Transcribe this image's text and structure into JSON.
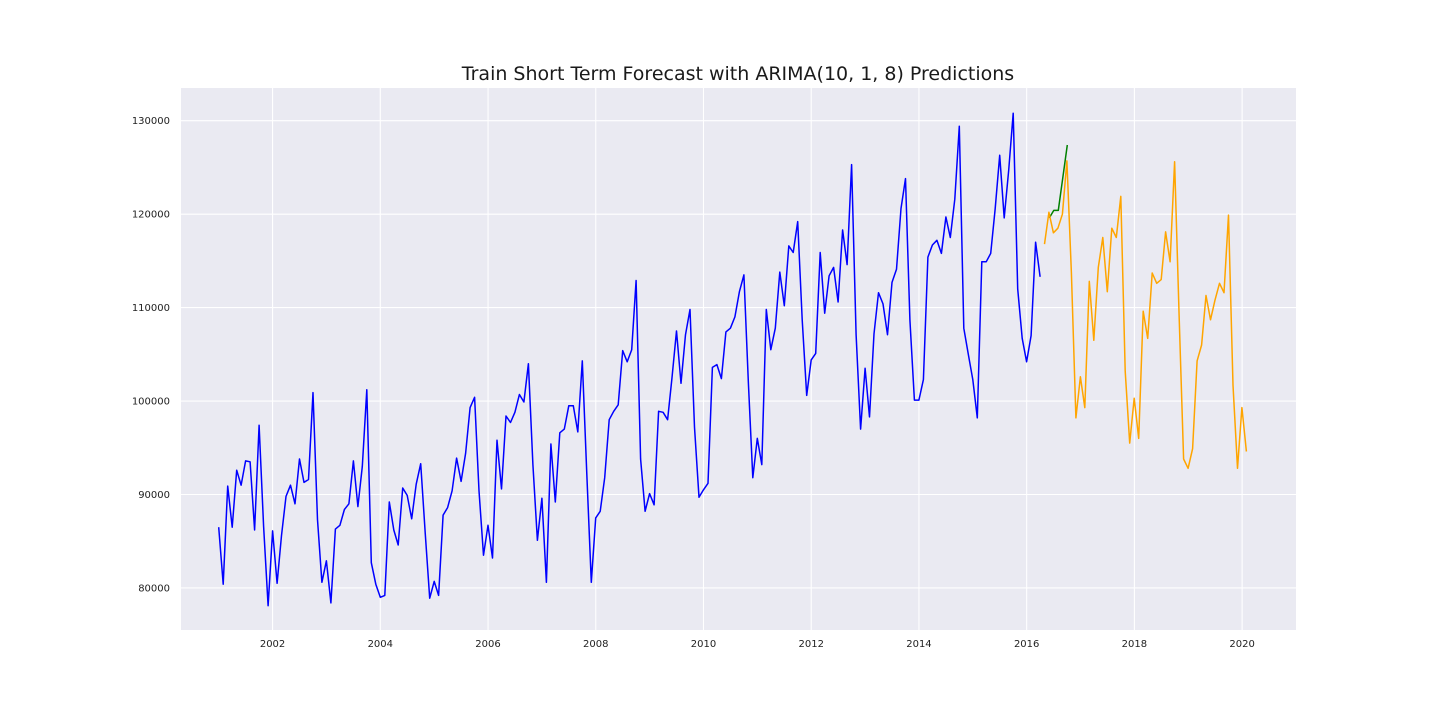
{
  "chart_data": {
    "type": "line",
    "title": "Train Short Term Forecast with ARIMA(10, 1, 8) Predictions",
    "xlabel": "",
    "ylabel": "",
    "xlim": [
      2000.3,
      2021.0
    ],
    "ylim": [
      75500,
      133500
    ],
    "grid": true,
    "x_ticks": [
      2002,
      2004,
      2006,
      2008,
      2010,
      2012,
      2014,
      2016,
      2018,
      2020
    ],
    "y_ticks": [
      80000,
      90000,
      100000,
      110000,
      120000,
      130000
    ],
    "series": [
      {
        "color": "#0000ff",
        "start": 2001.0,
        "step": 0.08333,
        "values": [
          86500,
          80400,
          90900,
          86500,
          92600,
          91000,
          93600,
          93500,
          86200,
          97400,
          86600,
          78100,
          86100,
          80500,
          85600,
          89800,
          91000,
          89000,
          93800,
          91300,
          91600,
          100900,
          87300,
          80600,
          82900,
          78400,
          86300,
          86700,
          88400,
          89000,
          93600,
          88700,
          93000,
          101200,
          82700,
          80400,
          79000,
          79200,
          89200,
          86200,
          84600,
          90700,
          89900,
          87400,
          91100,
          93300,
          85900,
          78900,
          80700,
          79200,
          87800,
          88600,
          90400,
          93900,
          91400,
          94400,
          99300,
          100400,
          90400,
          83500,
          86700,
          83200,
          95800,
          90600,
          98400,
          97700,
          98800,
          100700,
          99900,
          104000,
          93200,
          85100,
          89600,
          80600,
          95400,
          89200,
          96600,
          97000,
          99500,
          99500,
          96700,
          104300,
          92200,
          80600,
          87500,
          88200,
          91800,
          98000,
          98900,
          99600,
          105400,
          104200,
          105500,
          112900,
          93800,
          88200,
          90100,
          88900,
          98900,
          98800,
          98000,
          102500,
          107500,
          101900,
          107100,
          109800,
          97200,
          89700,
          90500,
          91200,
          103600,
          103900,
          102400,
          107400,
          107800,
          109000,
          111700,
          113500,
          101900,
          91800,
          96000,
          93200,
          109800,
          105500,
          107800,
          113800,
          110200,
          116600,
          115900,
          119200,
          108700,
          100600,
          104400,
          105100,
          115900,
          109400,
          113400,
          114300,
          110600,
          118300,
          114600,
          125300,
          107100,
          97000,
          103500,
          98300,
          107200,
          111600,
          110400,
          107100,
          112700,
          114100,
          120600,
          123800,
          108700,
          100100,
          100100,
          102300,
          115400,
          116700,
          117200,
          115800,
          119700,
          117500,
          121600,
          129400,
          107800,
          105000,
          102300,
          98200,
          114900,
          114900,
          115800,
          120600,
          126300,
          119600,
          124700,
          130800,
          112000,
          106700,
          104200,
          107000,
          117000,
          113300
        ]
      },
      {
        "color": "#008000",
        "start": 2016.42,
        "step": 0.08333,
        "values": [
          119600,
          120400,
          120400,
          123900,
          127400
        ]
      },
      {
        "color": "#ffa500",
        "start": 2016.33,
        "step": 0.08333,
        "values": [
          116800,
          120200,
          118000,
          118500,
          120000,
          125700,
          113700,
          98200,
          102600,
          99300,
          112800,
          106500,
          114300,
          117500,
          111700,
          118500,
          117500,
          121900,
          103200,
          95500,
          100300,
          96000,
          109600,
          106700,
          113700,
          112600,
          113000,
          118100,
          114900,
          125600,
          109200,
          93800,
          92800,
          94900,
          104300,
          106000,
          111300,
          108700,
          110800,
          112600,
          111600,
          119900,
          101700,
          92800,
          99300,
          94600
        ]
      }
    ]
  }
}
